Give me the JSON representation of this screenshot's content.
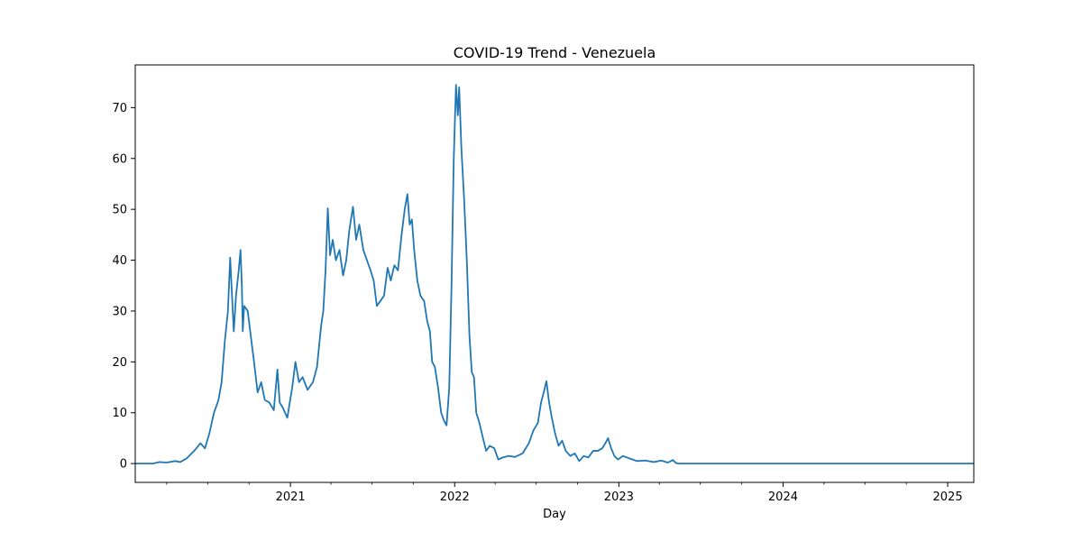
{
  "chart_data": {
    "type": "line",
    "title": "COVID-19 Trend - Venezuela",
    "xlabel": "Day",
    "ylabel": "",
    "x_range": [
      "2020-01-22",
      "2025-02-28"
    ],
    "ylim": [
      -3.7,
      78.4
    ],
    "x_ticks": [
      {
        "date": "2021-01-01",
        "label": "2021"
      },
      {
        "date": "2022-01-01",
        "label": "2022"
      },
      {
        "date": "2023-01-01",
        "label": "2023"
      },
      {
        "date": "2024-01-01",
        "label": "2024"
      },
      {
        "date": "2025-01-01",
        "label": "2025"
      }
    ],
    "y_ticks": [
      0,
      10,
      20,
      30,
      40,
      50,
      60,
      70
    ],
    "grid": false,
    "line_color": "#1f77b4",
    "series": [
      {
        "name": "",
        "points": [
          [
            "2020-01-22",
            0
          ],
          [
            "2020-03-01",
            0
          ],
          [
            "2020-03-15",
            0.3
          ],
          [
            "2020-04-01",
            0.2
          ],
          [
            "2020-04-20",
            0.5
          ],
          [
            "2020-05-01",
            0.3
          ],
          [
            "2020-05-15",
            1.0
          ],
          [
            "2020-06-01",
            2.5
          ],
          [
            "2020-06-15",
            4.0
          ],
          [
            "2020-06-25",
            3.0
          ],
          [
            "2020-07-05",
            6.0
          ],
          [
            "2020-07-15",
            10.0
          ],
          [
            "2020-07-25",
            12.5
          ],
          [
            "2020-08-01",
            16.0
          ],
          [
            "2020-08-08",
            24.0
          ],
          [
            "2020-08-15",
            30.0
          ],
          [
            "2020-08-20",
            40.5
          ],
          [
            "2020-08-23",
            35.0
          ],
          [
            "2020-08-28",
            26.0
          ],
          [
            "2020-09-02",
            33.0
          ],
          [
            "2020-09-08",
            38.0
          ],
          [
            "2020-09-12",
            42.0
          ],
          [
            "2020-09-15",
            35.0
          ],
          [
            "2020-09-17",
            26.0
          ],
          [
            "2020-09-20",
            31.0
          ],
          [
            "2020-09-28",
            30.0
          ],
          [
            "2020-10-05",
            25.0
          ],
          [
            "2020-10-12",
            20.0
          ],
          [
            "2020-10-20",
            14.0
          ],
          [
            "2020-10-28",
            16.0
          ],
          [
            "2020-11-05",
            12.5
          ],
          [
            "2020-11-15",
            12.0
          ],
          [
            "2020-11-25",
            10.5
          ],
          [
            "2020-12-03",
            18.5
          ],
          [
            "2020-12-08",
            12.0
          ],
          [
            "2020-12-15",
            11.0
          ],
          [
            "2020-12-25",
            9.0
          ],
          [
            "2021-01-05",
            15.0
          ],
          [
            "2021-01-12",
            20.0
          ],
          [
            "2021-01-20",
            16.0
          ],
          [
            "2021-01-28",
            17.0
          ],
          [
            "2021-02-08",
            14.5
          ],
          [
            "2021-02-20",
            16.0
          ],
          [
            "2021-03-01",
            19.0
          ],
          [
            "2021-03-10",
            27.0
          ],
          [
            "2021-03-15",
            30.0
          ],
          [
            "2021-03-20",
            38.0
          ],
          [
            "2021-03-25",
            50.2
          ],
          [
            "2021-03-30",
            41.0
          ],
          [
            "2021-04-05",
            44.0
          ],
          [
            "2021-04-12",
            40.0
          ],
          [
            "2021-04-20",
            42.0
          ],
          [
            "2021-04-28",
            37.0
          ],
          [
            "2021-05-05",
            40.0
          ],
          [
            "2021-05-12",
            46.0
          ],
          [
            "2021-05-20",
            50.5
          ],
          [
            "2021-05-27",
            44.0
          ],
          [
            "2021-06-03",
            47.0
          ],
          [
            "2021-06-12",
            42.0
          ],
          [
            "2021-06-20",
            40.0
          ],
          [
            "2021-06-28",
            38.0
          ],
          [
            "2021-07-05",
            36.0
          ],
          [
            "2021-07-12",
            31.0
          ],
          [
            "2021-07-20",
            32.0
          ],
          [
            "2021-07-28",
            33.0
          ],
          [
            "2021-08-05",
            38.5
          ],
          [
            "2021-08-12",
            36.0
          ],
          [
            "2021-08-20",
            39.0
          ],
          [
            "2021-08-28",
            38.0
          ],
          [
            "2021-09-05",
            45.0
          ],
          [
            "2021-09-12",
            50.0
          ],
          [
            "2021-09-18",
            53.0
          ],
          [
            "2021-09-23",
            47.0
          ],
          [
            "2021-09-28",
            48.0
          ],
          [
            "2021-10-03",
            42.0
          ],
          [
            "2021-10-10",
            36.0
          ],
          [
            "2021-10-17",
            33.0
          ],
          [
            "2021-10-25",
            32.0
          ],
          [
            "2021-11-01",
            28.0
          ],
          [
            "2021-11-07",
            26.0
          ],
          [
            "2021-11-12",
            20.0
          ],
          [
            "2021-11-18",
            19.0
          ],
          [
            "2021-11-25",
            15.0
          ],
          [
            "2021-12-02",
            10.0
          ],
          [
            "2021-12-08",
            8.5
          ],
          [
            "2021-12-14",
            7.5
          ],
          [
            "2021-12-20",
            15.0
          ],
          [
            "2021-12-25",
            35.0
          ],
          [
            "2021-12-30",
            60.0
          ],
          [
            "2022-01-04",
            74.5
          ],
          [
            "2022-01-08",
            68.5
          ],
          [
            "2022-01-11",
            74.0
          ],
          [
            "2022-01-16",
            62.0
          ],
          [
            "2022-01-22",
            52.0
          ],
          [
            "2022-01-28",
            40.0
          ],
          [
            "2022-02-03",
            25.0
          ],
          [
            "2022-02-08",
            18.0
          ],
          [
            "2022-02-13",
            17.0
          ],
          [
            "2022-02-18",
            10.0
          ],
          [
            "2022-02-25",
            8.0
          ],
          [
            "2022-03-05",
            5.0
          ],
          [
            "2022-03-12",
            2.5
          ],
          [
            "2022-03-20",
            3.5
          ],
          [
            "2022-03-30",
            3.0
          ],
          [
            "2022-04-08",
            0.8
          ],
          [
            "2022-04-18",
            1.2
          ],
          [
            "2022-05-01",
            1.5
          ],
          [
            "2022-05-15",
            1.3
          ],
          [
            "2022-06-01",
            2.0
          ],
          [
            "2022-06-15",
            4.0
          ],
          [
            "2022-06-25",
            6.5
          ],
          [
            "2022-07-05",
            8.0
          ],
          [
            "2022-07-12",
            12.0
          ],
          [
            "2022-07-18",
            14.0
          ],
          [
            "2022-07-24",
            16.2
          ],
          [
            "2022-07-30",
            12.0
          ],
          [
            "2022-08-05",
            9.0
          ],
          [
            "2022-08-12",
            6.0
          ],
          [
            "2022-08-20",
            3.5
          ],
          [
            "2022-08-28",
            4.5
          ],
          [
            "2022-09-05",
            2.5
          ],
          [
            "2022-09-15",
            1.5
          ],
          [
            "2022-09-25",
            2.0
          ],
          [
            "2022-10-05",
            0.5
          ],
          [
            "2022-10-15",
            1.5
          ],
          [
            "2022-10-25",
            1.2
          ],
          [
            "2022-11-05",
            2.5
          ],
          [
            "2022-11-15",
            2.5
          ],
          [
            "2022-11-25",
            3.0
          ],
          [
            "2022-12-02",
            4.0
          ],
          [
            "2022-12-08",
            5.0
          ],
          [
            "2022-12-15",
            3.0
          ],
          [
            "2022-12-22",
            1.5
          ],
          [
            "2022-12-30",
            0.8
          ],
          [
            "2023-01-10",
            1.5
          ],
          [
            "2023-01-25",
            1.0
          ],
          [
            "2023-02-10",
            0.5
          ],
          [
            "2023-03-01",
            0.6
          ],
          [
            "2023-03-20",
            0.3
          ],
          [
            "2023-04-05",
            0.6
          ],
          [
            "2023-04-20",
            0.2
          ],
          [
            "2023-05-01",
            0.7
          ],
          [
            "2023-05-08",
            0.1
          ],
          [
            "2023-05-15",
            0
          ],
          [
            "2025-02-28",
            0
          ]
        ]
      }
    ]
  }
}
